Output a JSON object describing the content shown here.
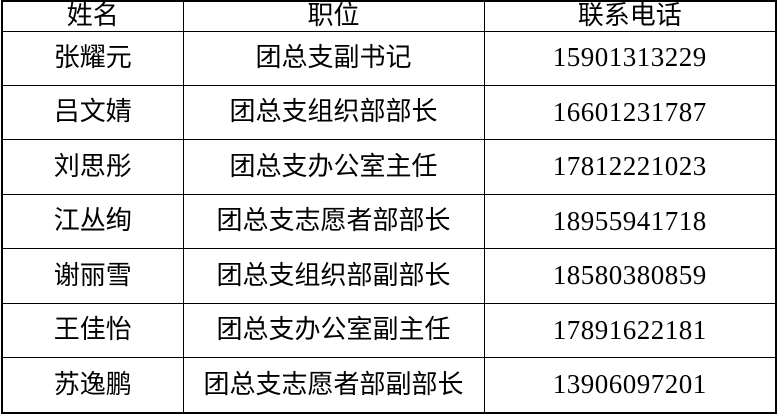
{
  "page": {
    "background_color": "#ffffff",
    "border_color": "#000000",
    "text_color": "#000000"
  },
  "table": {
    "columns": [
      {
        "key": "name",
        "label": "姓名"
      },
      {
        "key": "position",
        "label": "职位"
      },
      {
        "key": "phone",
        "label": "联系电话"
      }
    ],
    "rows": [
      {
        "name": "张耀元",
        "position": "团总支副书记",
        "phone": "15901313229"
      },
      {
        "name": "吕文婧",
        "position": "团总支组织部部长",
        "phone": "16601231787"
      },
      {
        "name": "刘思彤",
        "position": "团总支办公室主任",
        "phone": "17812221023"
      },
      {
        "name": "江丛绚",
        "position": "团总支志愿者部部长",
        "phone": "18955941718"
      },
      {
        "name": "谢丽雪",
        "position": "团总支组织部副部长",
        "phone": "18580380859"
      },
      {
        "name": "王佳怡",
        "position": "团总支办公室副主任",
        "phone": "17891622181"
      },
      {
        "name": "苏逸鹏",
        "position": "团总支志愿者部副部长",
        "phone": "13906097201"
      }
    ]
  }
}
